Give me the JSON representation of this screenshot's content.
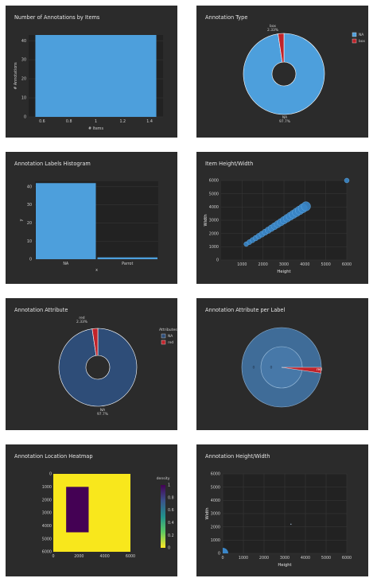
{
  "colors": {
    "blue": "#4d9fdc",
    "red": "#c0232a",
    "dark_blue": "#2e4d78",
    "yellow": "#f8e71c",
    "purple": "#440154",
    "panel": "#2b2b2b",
    "plot": "#222222",
    "grid": "#3a3a3a",
    "tick": "#cfcfcf"
  },
  "chart_data": [
    {
      "type": "bar",
      "title": "Number of Annotations by Items",
      "xlabel": "# Items",
      "ylabel": "# Annotations",
      "x_ticks": [
        "0.6",
        "0.8",
        "1",
        "1.2",
        "1.4"
      ],
      "y_ticks": [
        "0",
        "10",
        "20",
        "30",
        "40"
      ],
      "categories": [
        1
      ],
      "values": [
        43
      ],
      "xlim": [
        0.5,
        1.5
      ],
      "ylim": [
        0,
        43
      ]
    },
    {
      "type": "pie",
      "title": "Annotation Type",
      "labels": [
        "NA",
        "box"
      ],
      "values": [
        97.7,
        2.33
      ],
      "label_texts": [
        "NA\n97.7%",
        "box\n2.33%"
      ],
      "legend": [
        "NA",
        "box"
      ],
      "legend_placement": "top-right"
    },
    {
      "type": "bar",
      "title": "Annotation Labels Histogram",
      "xlabel": "x",
      "ylabel": "y",
      "categories": [
        "NA",
        "Parrot"
      ],
      "values": [
        42,
        1
      ],
      "y_ticks": [
        "0",
        "10",
        "20",
        "30",
        "40"
      ],
      "ylim": [
        0,
        43
      ]
    },
    {
      "type": "scatter",
      "title": "Item Height/Width",
      "xlabel": "Height",
      "ylabel": "Width",
      "x_ticks": [
        "1000",
        "2000",
        "3000",
        "4000",
        "5000",
        "6000"
      ],
      "y_ticks": [
        "0",
        "1000",
        "2000",
        "3000",
        "4000",
        "5000",
        "6000"
      ],
      "xlim": [
        0,
        6000
      ],
      "ylim": [
        0,
        6000
      ],
      "points": [
        [
          1200,
          1200
        ],
        [
          1350,
          1350
        ],
        [
          1500,
          1500
        ],
        [
          1650,
          1650
        ],
        [
          1800,
          1800
        ],
        [
          1950,
          1950
        ],
        [
          2100,
          2100
        ],
        [
          2250,
          2250
        ],
        [
          2400,
          2400
        ],
        [
          2550,
          2550
        ],
        [
          2700,
          2700
        ],
        [
          2850,
          2850
        ],
        [
          3000,
          3000
        ],
        [
          3150,
          3150
        ],
        [
          3300,
          3300
        ],
        [
          3450,
          3450
        ],
        [
          3600,
          3600
        ],
        [
          3750,
          3750
        ],
        [
          3900,
          3900
        ],
        [
          4050,
          4050
        ],
        [
          6000,
          6000
        ]
      ]
    },
    {
      "type": "pie",
      "title": "Annotation Attribute",
      "labels": [
        "NA",
        "red"
      ],
      "values": [
        97.7,
        2.33
      ],
      "label_texts": [
        "NA\n97.7%",
        "red\n2.33%"
      ],
      "legend_title": "Attributes",
      "legend": [
        "NA",
        "red"
      ],
      "legend_placement": "right"
    },
    {
      "type": "pie",
      "title": "Annotation Attribute per Label",
      "inner_label": "0",
      "outer_label": "0",
      "slice_label": "red",
      "values": [
        97.7,
        2.33
      ]
    },
    {
      "type": "heatmap",
      "title": "Annotation Location Heatmap",
      "x_ticks": [
        "0",
        "2000",
        "4000",
        "6000"
      ],
      "y_ticks": [
        "0",
        "1000",
        "2000",
        "3000",
        "4000",
        "5000",
        "6000"
      ],
      "colorbar_title": "density",
      "colorbar_ticks": [
        "0",
        "0.2",
        "0.4",
        "0.6",
        "0.8",
        "1"
      ],
      "xlim": [
        0,
        6000
      ],
      "ylim": [
        0,
        6000
      ],
      "grid_extent": [
        0,
        6000
      ],
      "low_density_region": {
        "x": [
          1000,
          2750
        ],
        "y": [
          1000,
          4500
        ]
      }
    },
    {
      "type": "scatter",
      "title": "Annotation Height/Width",
      "xlabel": "Height",
      "ylabel": "Width",
      "x_ticks": [
        "0",
        "1000",
        "2000",
        "3000",
        "4000",
        "5000",
        "6000"
      ],
      "y_ticks": [
        "0",
        "1000",
        "2000",
        "3000",
        "4000",
        "5000",
        "6000"
      ],
      "xlim": [
        0,
        6000
      ],
      "ylim": [
        0,
        6000
      ],
      "points": [
        [
          3300,
          2200
        ],
        [
          80,
          80
        ]
      ]
    }
  ]
}
